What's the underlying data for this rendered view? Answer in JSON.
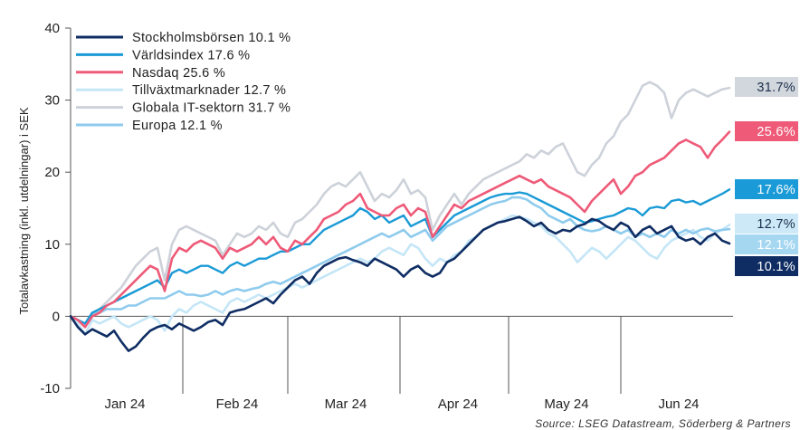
{
  "chart_data": {
    "type": "line",
    "ylabel": "Totalavkastning (inkl. utdelningar) i SEK",
    "xlabel": "",
    "ylim": [
      -10,
      40
    ],
    "yticks": [
      -10,
      0,
      10,
      20,
      30,
      40
    ],
    "xlim": [
      0,
      183
    ],
    "month_labels": [
      {
        "label": "Jan 24",
        "x": 15
      },
      {
        "label": "Feb 24",
        "x": 46
      },
      {
        "label": "Mar 24",
        "x": 76
      },
      {
        "label": "Apr 24",
        "x": 107
      },
      {
        "label": "May 24",
        "x": 137
      },
      {
        "label": "Jun 24",
        "x": 168
      }
    ],
    "month_boundaries": [
      31,
      60,
      91,
      121,
      152
    ],
    "legend_position": "top-left",
    "series": [
      {
        "name": "Stockholmsbörsen 10.1 %",
        "color": "#0f2d63",
        "width": 2.6,
        "end_label": "10.1%",
        "end_bg": "#0f2d63",
        "end_fg": "#ffffff",
        "end_y": 10.1,
        "x": [
          0,
          2,
          4,
          6,
          8,
          10,
          12,
          14,
          16,
          18,
          20,
          22,
          24,
          26,
          28,
          30,
          32,
          34,
          36,
          38,
          40,
          42,
          44,
          46,
          48,
          50,
          52,
          54,
          56,
          58,
          60,
          62,
          64,
          66,
          68,
          70,
          72,
          74,
          76,
          78,
          80,
          82,
          84,
          86,
          88,
          90,
          92,
          94,
          96,
          98,
          100,
          102,
          104,
          106,
          108,
          110,
          112,
          114,
          116,
          118,
          120,
          122,
          124,
          126,
          128,
          130,
          132,
          134,
          136,
          138,
          140,
          142,
          144,
          146,
          148,
          150,
          152,
          154,
          156,
          158,
          160,
          162,
          164,
          166,
          168,
          170,
          172,
          174,
          176,
          178,
          180,
          182
        ],
        "values": [
          0,
          -1.5,
          -2.5,
          -1.8,
          -2.3,
          -2.8,
          -2.0,
          -3.5,
          -4.8,
          -4.2,
          -3.0,
          -2.0,
          -1.5,
          -1.2,
          -1.8,
          -1.0,
          -1.5,
          -2.0,
          -1.5,
          -0.8,
          -0.5,
          -1.2,
          0.5,
          0.8,
          1.0,
          1.5,
          2.0,
          2.5,
          1.8,
          3.0,
          4.0,
          5.0,
          5.5,
          4.5,
          6.0,
          7.0,
          7.5,
          8.0,
          8.2,
          7.8,
          7.5,
          7.0,
          8.0,
          7.5,
          7.0,
          6.5,
          5.5,
          6.5,
          7.0,
          6.0,
          5.5,
          6.0,
          7.5,
          8.0,
          9.0,
          10.0,
          11.0,
          12.0,
          12.5,
          13.0,
          13.2,
          13.5,
          13.8,
          13.2,
          12.5,
          13.0,
          12.0,
          11.5,
          12.0,
          11.8,
          12.5,
          12.8,
          13.5,
          13.2,
          12.5,
          12.0,
          13.0,
          12.5,
          11.0,
          12.0,
          12.5,
          11.5,
          12.0,
          12.5,
          11.0,
          10.5,
          10.8,
          10.0,
          11.0,
          11.5,
          10.5,
          10.1
        ]
      },
      {
        "name": "Världsindex 17.6 %",
        "color": "#1a9ad6",
        "width": 2.4,
        "end_label": "17.6%",
        "end_bg": "#1a9ad6",
        "end_fg": "#ffffff",
        "end_y": 17.6,
        "x": [
          0,
          2,
          4,
          6,
          8,
          10,
          12,
          14,
          16,
          18,
          20,
          22,
          24,
          26,
          28,
          30,
          32,
          34,
          36,
          38,
          40,
          42,
          44,
          46,
          48,
          50,
          52,
          54,
          56,
          58,
          60,
          62,
          64,
          66,
          68,
          70,
          72,
          74,
          76,
          78,
          80,
          82,
          84,
          86,
          88,
          90,
          92,
          94,
          96,
          98,
          100,
          102,
          104,
          106,
          108,
          110,
          112,
          114,
          116,
          118,
          120,
          122,
          124,
          126,
          128,
          130,
          132,
          134,
          136,
          138,
          140,
          142,
          144,
          146,
          148,
          150,
          152,
          154,
          156,
          158,
          160,
          162,
          164,
          166,
          168,
          170,
          172,
          174,
          176,
          178,
          180,
          182
        ],
        "values": [
          0,
          -0.5,
          -1.0,
          0.5,
          1.0,
          1.5,
          2.0,
          2.5,
          3.0,
          3.5,
          4.0,
          4.5,
          5.0,
          4.0,
          6.0,
          6.5,
          6.0,
          6.5,
          7.0,
          7.0,
          6.5,
          6.0,
          7.0,
          7.5,
          7.0,
          7.5,
          8.0,
          8.0,
          8.5,
          9.0,
          9.0,
          9.5,
          10.0,
          10.0,
          11.0,
          12.0,
          12.5,
          13.0,
          13.5,
          14.0,
          15.0,
          14.5,
          13.5,
          14.0,
          13.0,
          13.5,
          14.0,
          12.5,
          13.0,
          13.5,
          11.0,
          12.0,
          13.0,
          14.0,
          14.5,
          15.0,
          15.5,
          16.0,
          16.5,
          16.8,
          17.0,
          17.0,
          17.2,
          17.0,
          16.5,
          16.0,
          15.5,
          15.0,
          14.5,
          14.0,
          13.5,
          13.0,
          13.2,
          13.5,
          13.8,
          14.0,
          14.5,
          15.0,
          14.8,
          14.0,
          15.0,
          15.2,
          15.0,
          16.0,
          16.2,
          15.8,
          16.0,
          15.5,
          16.0,
          16.5,
          17.0,
          17.6
        ]
      },
      {
        "name": "Nasdaq 25.6 %",
        "color": "#ee5a78",
        "width": 2.6,
        "end_label": "25.6%",
        "end_bg": "#ee5a78",
        "end_fg": "#ffffff",
        "end_y": 25.6,
        "x": [
          0,
          2,
          4,
          6,
          8,
          10,
          12,
          14,
          16,
          18,
          20,
          22,
          24,
          26,
          28,
          30,
          32,
          34,
          36,
          38,
          40,
          42,
          44,
          46,
          48,
          50,
          52,
          54,
          56,
          58,
          60,
          62,
          64,
          66,
          68,
          70,
          72,
          74,
          76,
          78,
          80,
          82,
          84,
          86,
          88,
          90,
          92,
          94,
          96,
          98,
          100,
          102,
          104,
          106,
          108,
          110,
          112,
          114,
          116,
          118,
          120,
          122,
          124,
          126,
          128,
          130,
          132,
          134,
          136,
          138,
          140,
          142,
          144,
          146,
          148,
          150,
          152,
          154,
          156,
          158,
          160,
          162,
          164,
          166,
          168,
          170,
          172,
          174,
          176,
          178,
          180,
          182
        ],
        "values": [
          0,
          -0.5,
          -1.5,
          0.0,
          0.5,
          1.5,
          2.0,
          3.0,
          4.0,
          5.0,
          6.0,
          7.0,
          6.5,
          3.5,
          8.0,
          9.5,
          9.0,
          10.0,
          10.5,
          10.0,
          9.5,
          8.0,
          9.5,
          9.0,
          9.5,
          10.0,
          11.0,
          10.0,
          11.0,
          9.5,
          9.0,
          10.5,
          10.0,
          11.0,
          12.0,
          13.5,
          14.0,
          14.5,
          15.5,
          16.0,
          17.0,
          15.0,
          14.5,
          14.0,
          14.0,
          15.0,
          15.5,
          14.0,
          15.0,
          14.5,
          11.0,
          12.5,
          14.0,
          15.5,
          15.0,
          16.0,
          16.5,
          17.0,
          17.5,
          18.0,
          18.5,
          19.0,
          19.5,
          19.0,
          18.5,
          19.0,
          18.0,
          17.5,
          17.0,
          16.5,
          15.5,
          14.5,
          16.0,
          17.0,
          18.0,
          19.0,
          17.0,
          18.0,
          19.5,
          20.0,
          21.0,
          21.5,
          22.0,
          23.0,
          24.0,
          24.5,
          24.0,
          23.5,
          22.0,
          23.5,
          24.5,
          25.6
        ]
      },
      {
        "name": "Tillväxtmarknader 12.7 %",
        "color": "#c5e6f7",
        "width": 2.6,
        "end_label": "12.7%",
        "end_bg": "#cde9f8",
        "end_fg": "#1a2e4a",
        "end_y": 12.7,
        "x": [
          0,
          2,
          4,
          6,
          8,
          10,
          12,
          14,
          16,
          18,
          20,
          22,
          24,
          26,
          28,
          30,
          32,
          34,
          36,
          38,
          40,
          42,
          44,
          46,
          48,
          50,
          52,
          54,
          56,
          58,
          60,
          62,
          64,
          66,
          68,
          70,
          72,
          74,
          76,
          78,
          80,
          82,
          84,
          86,
          88,
          90,
          92,
          94,
          96,
          98,
          100,
          102,
          104,
          106,
          108,
          110,
          112,
          114,
          116,
          118,
          120,
          122,
          124,
          126,
          128,
          130,
          132,
          134,
          136,
          138,
          140,
          142,
          144,
          146,
          148,
          150,
          152,
          154,
          156,
          158,
          160,
          162,
          164,
          166,
          168,
          170,
          172,
          174,
          176,
          178,
          180,
          182
        ],
        "values": [
          0,
          -1.0,
          -2.5,
          -0.5,
          -1.0,
          -0.5,
          0.0,
          -1.0,
          -1.5,
          -1.0,
          -0.5,
          0.0,
          -0.5,
          -2.0,
          0.0,
          1.0,
          0.5,
          1.5,
          2.0,
          1.5,
          1.0,
          0.5,
          2.0,
          2.5,
          2.0,
          2.5,
          3.0,
          2.5,
          3.0,
          3.5,
          4.0,
          4.5,
          4.0,
          4.5,
          5.0,
          5.5,
          6.0,
          6.5,
          7.0,
          7.5,
          8.0,
          7.5,
          8.0,
          9.0,
          9.5,
          9.0,
          8.5,
          10.0,
          9.5,
          8.0,
          7.0,
          8.0,
          7.5,
          8.5,
          9.0,
          10.5,
          11.0,
          12.0,
          12.5,
          13.0,
          13.5,
          14.0,
          13.8,
          13.5,
          13.0,
          12.5,
          11.5,
          11.0,
          10.0,
          9.0,
          7.5,
          8.5,
          9.5,
          9.0,
          8.0,
          9.0,
          10.0,
          11.0,
          10.5,
          9.5,
          8.5,
          8.0,
          9.5,
          10.5,
          11.0,
          11.5,
          12.0,
          11.0,
          10.5,
          11.5,
          12.0,
          12.7
        ]
      },
      {
        "name": "Globala IT-sektorn 31.7 %",
        "color": "#cdd2da",
        "width": 2.6,
        "end_label": "31.7%",
        "end_bg": "#d2d6dd",
        "end_fg": "#1a2e4a",
        "end_y": 31.7,
        "x": [
          0,
          2,
          4,
          6,
          8,
          10,
          12,
          14,
          16,
          18,
          20,
          22,
          24,
          26,
          28,
          30,
          32,
          34,
          36,
          38,
          40,
          42,
          44,
          46,
          48,
          50,
          52,
          54,
          56,
          58,
          60,
          62,
          64,
          66,
          68,
          70,
          72,
          74,
          76,
          78,
          80,
          82,
          84,
          86,
          88,
          90,
          92,
          94,
          96,
          98,
          100,
          102,
          104,
          106,
          108,
          110,
          112,
          114,
          116,
          118,
          120,
          122,
          124,
          126,
          128,
          130,
          132,
          134,
          136,
          138,
          140,
          142,
          144,
          146,
          148,
          150,
          152,
          154,
          156,
          158,
          160,
          162,
          164,
          166,
          168,
          170,
          172,
          174,
          176,
          178,
          180,
          182
        ],
        "values": [
          0,
          -0.5,
          -1.5,
          0.0,
          1.0,
          2.0,
          3.0,
          4.0,
          5.5,
          7.0,
          8.0,
          9.0,
          9.5,
          5.0,
          10.0,
          12.0,
          12.5,
          12.0,
          11.5,
          11.0,
          10.5,
          8.5,
          10.0,
          11.5,
          11.0,
          11.5,
          12.5,
          12.0,
          13.0,
          11.5,
          11.0,
          13.0,
          13.5,
          14.5,
          15.5,
          17.0,
          18.0,
          18.5,
          18.0,
          19.0,
          20.0,
          18.0,
          16.0,
          17.0,
          16.5,
          17.5,
          19.0,
          17.0,
          17.5,
          16.5,
          12.0,
          14.0,
          15.5,
          17.0,
          15.5,
          17.0,
          18.0,
          19.0,
          19.5,
          20.0,
          20.5,
          21.0,
          21.5,
          22.5,
          22.0,
          23.0,
          22.5,
          23.5,
          24.0,
          22.0,
          20.0,
          19.5,
          21.0,
          22.0,
          24.0,
          25.0,
          27.0,
          28.0,
          30.0,
          32.0,
          32.5,
          32.0,
          31.0,
          27.5,
          30.0,
          31.0,
          31.5,
          31.0,
          30.5,
          31.0,
          31.5,
          31.7
        ]
      },
      {
        "name": "Europa  12.1 %",
        "color": "#8fcbed",
        "width": 2.6,
        "end_label": "12.1%",
        "end_bg": "#a5d7f1",
        "end_fg": "#ffffff",
        "end_y": 12.1,
        "x": [
          0,
          2,
          4,
          6,
          8,
          10,
          12,
          14,
          16,
          18,
          20,
          22,
          24,
          26,
          28,
          30,
          32,
          34,
          36,
          38,
          40,
          42,
          44,
          46,
          48,
          50,
          52,
          54,
          56,
          58,
          60,
          62,
          64,
          66,
          68,
          70,
          72,
          74,
          76,
          78,
          80,
          82,
          84,
          86,
          88,
          90,
          92,
          94,
          96,
          98,
          100,
          102,
          104,
          106,
          108,
          110,
          112,
          114,
          116,
          118,
          120,
          122,
          124,
          126,
          128,
          130,
          132,
          134,
          136,
          138,
          140,
          142,
          144,
          146,
          148,
          150,
          152,
          154,
          156,
          158,
          160,
          162,
          164,
          166,
          168,
          170,
          172,
          174,
          176,
          178,
          180,
          182
        ],
        "values": [
          0,
          -0.5,
          -1.0,
          0.5,
          0.5,
          1.0,
          1.0,
          1.0,
          1.5,
          1.5,
          2.0,
          2.5,
          2.5,
          2.5,
          3.0,
          3.5,
          3.0,
          3.0,
          2.8,
          3.0,
          3.5,
          3.0,
          3.5,
          3.8,
          3.5,
          3.8,
          4.0,
          4.5,
          4.8,
          4.5,
          5.0,
          5.5,
          6.0,
          6.5,
          7.0,
          7.5,
          8.0,
          8.5,
          9.0,
          9.5,
          10.0,
          10.5,
          11.0,
          11.5,
          11.0,
          11.5,
          12.0,
          11.0,
          11.5,
          12.0,
          10.5,
          11.5,
          12.5,
          13.0,
          13.5,
          14.0,
          14.5,
          15.0,
          15.5,
          15.8,
          16.0,
          16.5,
          16.5,
          16.2,
          15.5,
          15.0,
          14.0,
          13.5,
          13.0,
          13.5,
          12.5,
          12.0,
          11.8,
          12.0,
          12.5,
          12.0,
          11.5,
          12.0,
          11.0,
          11.5,
          11.0,
          11.5,
          11.0,
          12.0,
          11.5,
          12.0,
          11.5,
          12.0,
          12.2,
          11.8,
          12.0,
          12.1
        ]
      }
    ],
    "source": "Source: LSEG Datastream, Söderberg & Partners"
  }
}
